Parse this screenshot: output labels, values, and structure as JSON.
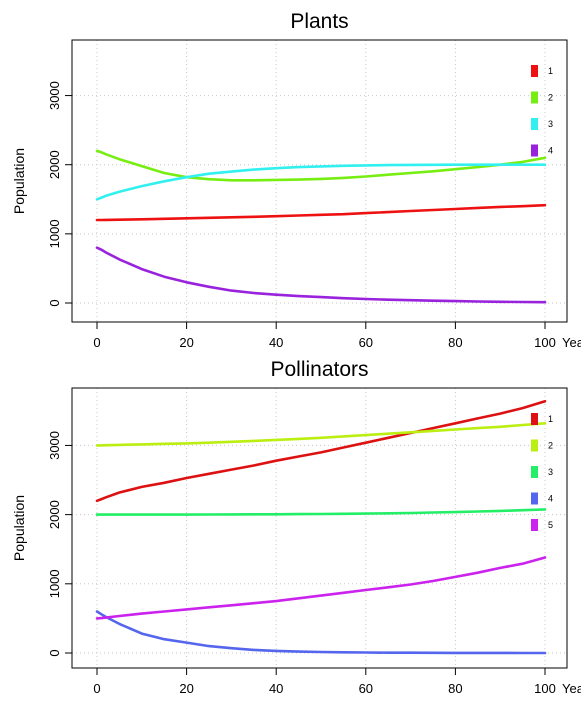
{
  "chart_data": [
    {
      "type": "line",
      "title": "Plants",
      "xlabel": "",
      "ylabel": "Population",
      "x_unit": "Years",
      "xlim": [
        0,
        100
      ],
      "ylim": [
        0,
        3500
      ],
      "xticks": [
        0,
        20,
        40,
        60,
        80,
        100
      ],
      "yticks": [
        0,
        1000,
        2000,
        3000
      ],
      "grid": true,
      "legend_position": "top-right",
      "x": [
        0,
        1,
        2,
        5,
        10,
        15,
        20,
        25,
        30,
        35,
        40,
        45,
        50,
        55,
        60,
        65,
        70,
        75,
        80,
        85,
        90,
        95,
        100
      ],
      "series": [
        {
          "name": "1",
          "color": "#ee1111",
          "values": [
            1200,
            1201,
            1202,
            1205,
            1210,
            1218,
            1225,
            1232,
            1240,
            1247,
            1255,
            1265,
            1275,
            1285,
            1300,
            1315,
            1330,
            1345,
            1360,
            1375,
            1390,
            1400,
            1415
          ]
        },
        {
          "name": "2",
          "color": "#77ee11",
          "values": [
            2200,
            2180,
            2150,
            2080,
            1980,
            1880,
            1820,
            1790,
            1775,
            1775,
            1780,
            1785,
            1795,
            1810,
            1830,
            1855,
            1880,
            1905,
            1935,
            1965,
            2000,
            2040,
            2100
          ]
        },
        {
          "name": "3",
          "color": "#33f0f0",
          "values": [
            1500,
            1525,
            1550,
            1610,
            1690,
            1760,
            1820,
            1870,
            1900,
            1930,
            1950,
            1965,
            1975,
            1985,
            1990,
            1995,
            1997,
            1999,
            2000,
            2000,
            2000,
            2000,
            2000
          ]
        },
        {
          "name": "4",
          "color": "#9922dd",
          "values": [
            800,
            770,
            730,
            630,
            490,
            380,
            300,
            235,
            180,
            145,
            120,
            100,
            85,
            70,
            58,
            48,
            40,
            33,
            27,
            22,
            17,
            14,
            11
          ]
        }
      ]
    },
    {
      "type": "line",
      "title": "Pollinators",
      "xlabel": "",
      "ylabel": "Population",
      "x_unit": "Years",
      "xlim": [
        0,
        100
      ],
      "ylim": [
        0,
        3700
      ],
      "xticks": [
        0,
        20,
        40,
        60,
        80,
        100
      ],
      "yticks": [
        0,
        1000,
        2000,
        3000
      ],
      "grid": true,
      "legend_position": "top-right",
      "x": [
        0,
        1,
        2,
        5,
        10,
        15,
        20,
        25,
        30,
        35,
        40,
        45,
        50,
        55,
        60,
        65,
        70,
        75,
        80,
        85,
        90,
        95,
        100
      ],
      "series": [
        {
          "name": "1",
          "color": "#dd1111",
          "values": [
            2200,
            2225,
            2250,
            2320,
            2400,
            2460,
            2530,
            2590,
            2650,
            2710,
            2780,
            2840,
            2900,
            2970,
            3040,
            3110,
            3180,
            3250,
            3320,
            3390,
            3460,
            3540,
            3640
          ]
        },
        {
          "name": "2",
          "color": "#bbee11",
          "values": [
            3000,
            3001,
            3003,
            3008,
            3015,
            3023,
            3030,
            3040,
            3052,
            3065,
            3080,
            3095,
            3110,
            3130,
            3150,
            3170,
            3190,
            3210,
            3230,
            3250,
            3270,
            3295,
            3320
          ]
        },
        {
          "name": "3",
          "color": "#22ee66",
          "values": [
            2000,
            2000,
            2000,
            2000,
            2000,
            2001,
            2001,
            2002,
            2003,
            2004,
            2005,
            2007,
            2009,
            2012,
            2015,
            2019,
            2024,
            2030,
            2037,
            2045,
            2054,
            2064,
            2075
          ]
        },
        {
          "name": "4",
          "color": "#5566ee",
          "values": [
            600,
            560,
            520,
            420,
            280,
            200,
            150,
            100,
            70,
            45,
            30,
            20,
            14,
            10,
            7,
            5,
            4,
            3,
            2,
            1,
            1,
            0,
            0
          ]
        },
        {
          "name": "5",
          "color": "#cc22ee",
          "values": [
            500,
            505,
            512,
            535,
            570,
            600,
            630,
            660,
            690,
            720,
            750,
            790,
            830,
            870,
            910,
            950,
            990,
            1040,
            1100,
            1160,
            1230,
            1290,
            1380
          ]
        }
      ]
    }
  ]
}
